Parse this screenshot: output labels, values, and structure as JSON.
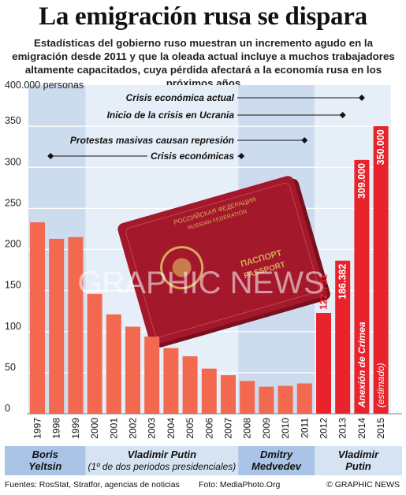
{
  "title": "La emigración rusa se dispara",
  "subtitle": "Estadísticas del gobierno ruso muestran un incremento agudo en la emigración desde 2011 y que la oleada actual incluye a muchos trabajadores altamente capacitados, cuya pérdida afectará a la economía rusa en los próximos años",
  "colors": {
    "bar": "#f2694f",
    "bar_highlight": "#e8232b",
    "band": "#cddbef",
    "band_alt": "#e6eef8",
    "era_dark": "#a9c4e6",
    "era_light": "#d5e3f3"
  },
  "chart_data": {
    "type": "bar",
    "unit_label": "400.000 personas",
    "x": [
      "1997",
      "1998",
      "1999",
      "2000",
      "2001",
      "2002",
      "2003",
      "2004",
      "2005",
      "2006",
      "2007",
      "2008",
      "2009",
      "2010",
      "2011",
      "2012",
      "2013",
      "2014",
      "2015"
    ],
    "values": [
      233000,
      213000,
      215000,
      146000,
      121000,
      106000,
      94000,
      80000,
      70000,
      55000,
      47000,
      40000,
      33000,
      34000,
      37000,
      122751,
      186382,
      309000,
      350000
    ],
    "highlight_from_index": 15,
    "value_labels": [
      "",
      "",
      "",
      "",
      "",
      "",
      "",
      "",
      "",
      "",
      "",
      "",
      "",
      "",
      "",
      "122.751",
      "186.382",
      "309.000",
      "350.000"
    ],
    "yticks": [
      0,
      50,
      100,
      150,
      200,
      250,
      300,
      350
    ],
    "ylim": [
      0,
      400
    ],
    "annotations": [
      {
        "text": "Crisis económica actual",
        "year": "2014"
      },
      {
        "text": "Inicio de la crisis en Ucrania",
        "year": "2013"
      },
      {
        "text": "Protestas masivas causan represión",
        "year": "2011"
      },
      {
        "text": "Crisis económicas",
        "year": "1998",
        "year_end": "2008"
      }
    ],
    "bar_notes": [
      {
        "text": "Anexión de Crimea",
        "year": "2014"
      },
      {
        "text": "(estimado)",
        "year": "2015"
      }
    ],
    "eras": [
      {
        "name": "Boris\nYeltsin",
        "from": "1997",
        "to": "1999"
      },
      {
        "name": "Vladimir Putin\n(1º de dos periodos presidenciales)",
        "from": "2000",
        "to": "2007"
      },
      {
        "name": "Dmitry\nMedvedev",
        "from": "2008",
        "to": "2011"
      },
      {
        "name": "Vladimir\nPutin",
        "from": "2012",
        "to": "2015"
      }
    ]
  },
  "photo_watermark": "GRAPHIC NEWS",
  "footer": {
    "source": "Fuentes: RosStat, Stratfor, agencias de noticias",
    "photo": "Foto: MediaPhoto.Org",
    "copyright": "© GRAPHIC NEWS"
  }
}
